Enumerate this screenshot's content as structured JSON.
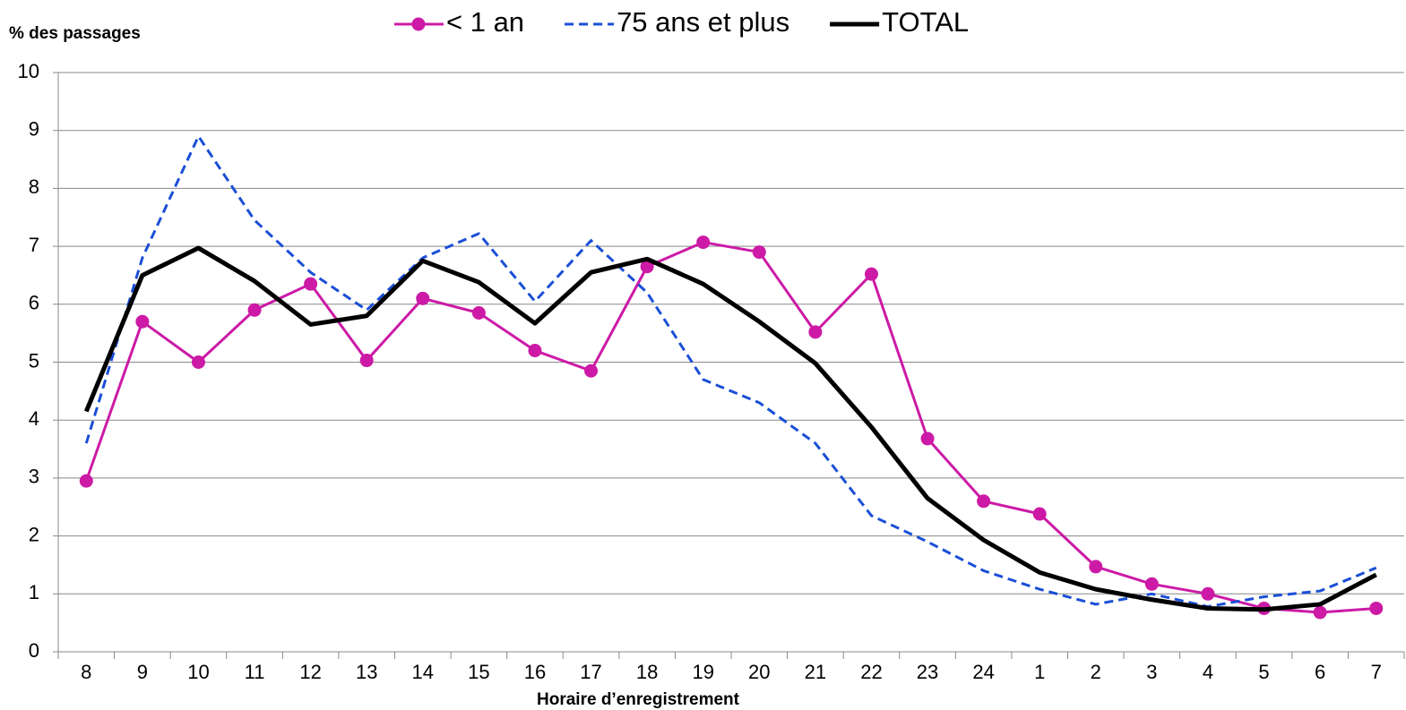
{
  "chart_data": {
    "type": "line",
    "y_label": "% des passages",
    "x_label": "Horaire d’enregistrement",
    "categories": [
      "8",
      "9",
      "10",
      "11",
      "12",
      "13",
      "14",
      "15",
      "16",
      "17",
      "18",
      "19",
      "20",
      "21",
      "22",
      "23",
      "24",
      "1",
      "2",
      "3",
      "4",
      "5",
      "6",
      "7"
    ],
    "series": [
      {
        "name": "< 1 an",
        "color": "#cc1aa6",
        "style": "solid",
        "marker": "circle",
        "values": [
          2.95,
          5.7,
          5.0,
          5.9,
          6.35,
          5.03,
          6.1,
          5.85,
          5.2,
          4.85,
          6.65,
          7.07,
          6.9,
          5.52,
          6.52,
          3.68,
          2.6,
          2.38,
          1.47,
          1.17,
          1.0,
          0.75,
          0.68,
          0.75
        ]
      },
      {
        "name": "75 ans et plus",
        "color": "#1a4fd6",
        "style": "dashed",
        "marker": "none",
        "values": [
          3.6,
          6.8,
          8.9,
          7.45,
          6.55,
          5.9,
          6.8,
          7.22,
          6.05,
          7.1,
          6.2,
          4.7,
          4.3,
          3.6,
          2.35,
          1.9,
          1.4,
          1.08,
          0.82,
          1.0,
          0.78,
          0.95,
          1.05,
          1.45
        ]
      },
      {
        "name": "TOTAL",
        "color": "#000000",
        "style": "bold",
        "marker": "none",
        "values": [
          4.15,
          6.5,
          6.97,
          6.4,
          5.65,
          5.8,
          6.75,
          6.38,
          5.67,
          6.55,
          6.78,
          6.35,
          5.7,
          4.98,
          3.88,
          2.65,
          1.93,
          1.37,
          1.08,
          0.9,
          0.75,
          0.73,
          0.82,
          1.33
        ]
      }
    ],
    "ylim": [
      0,
      10
    ],
    "yticks": [
      0,
      1,
      2,
      3,
      4,
      5,
      6,
      7,
      8,
      9,
      10
    ],
    "grid": true,
    "legend": "top"
  }
}
